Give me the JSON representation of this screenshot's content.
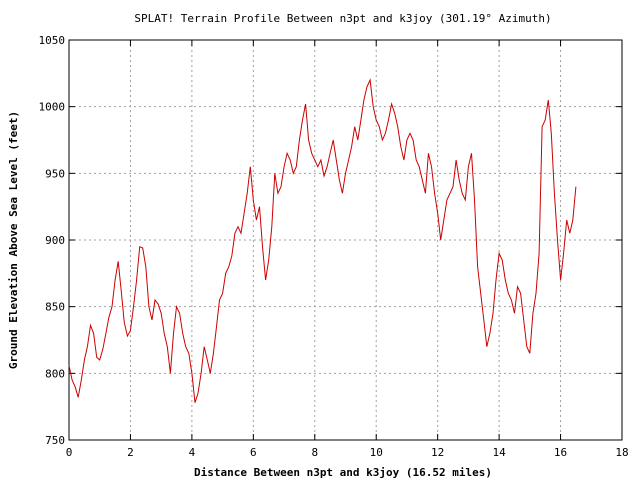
{
  "chart_data": {
    "type": "line",
    "title": "SPLAT! Terrain Profile Between n3pt and k3joy (301.19° Azimuth)",
    "xlabel": "Distance Between n3pt and k3joy (16.52 miles)",
    "ylabel": "Ground Elevation Above Sea Level (feet)",
    "xlim": [
      0,
      18
    ],
    "ylim": [
      750,
      1050
    ],
    "xticks": [
      "0",
      "2",
      "4",
      "6",
      "8",
      "10",
      "12",
      "14",
      "16",
      "18"
    ],
    "yticks": [
      "750",
      "800",
      "850",
      "900",
      "950",
      "1000",
      "1050"
    ],
    "grid": true,
    "legend": "none",
    "line_color": "#cc0000",
    "series": [
      {
        "x": [
          0.0,
          0.1,
          0.2,
          0.3,
          0.4,
          0.5,
          0.6,
          0.7,
          0.8,
          0.9,
          1.0,
          1.1,
          1.2,
          1.3,
          1.4,
          1.5,
          1.6,
          1.7,
          1.8,
          1.9,
          2.0,
          2.1,
          2.2,
          2.3,
          2.4,
          2.5,
          2.6,
          2.7,
          2.8,
          2.9,
          3.0,
          3.1,
          3.2,
          3.3,
          3.4,
          3.5,
          3.6,
          3.7,
          3.8,
          3.9,
          4.0,
          4.1,
          4.2,
          4.3,
          4.4,
          4.5,
          4.6,
          4.7,
          4.8,
          4.9,
          5.0,
          5.1,
          5.2,
          5.3,
          5.4,
          5.5,
          5.6,
          5.7,
          5.8,
          5.9,
          6.0,
          6.1,
          6.2,
          6.3,
          6.4,
          6.5,
          6.6,
          6.7,
          6.8,
          6.9,
          7.0,
          7.1,
          7.2,
          7.3,
          7.4,
          7.5,
          7.6,
          7.7,
          7.8,
          7.9,
          8.0,
          8.1,
          8.2,
          8.3,
          8.4,
          8.5,
          8.6,
          8.7,
          8.8,
          8.9,
          9.0,
          9.1,
          9.2,
          9.3,
          9.4,
          9.5,
          9.6,
          9.7,
          9.8,
          9.9,
          10.0,
          10.1,
          10.2,
          10.3,
          10.4,
          10.5,
          10.6,
          10.7,
          10.8,
          10.9,
          11.0,
          11.1,
          11.2,
          11.3,
          11.4,
          11.5,
          11.6,
          11.7,
          11.8,
          11.9,
          12.0,
          12.1,
          12.2,
          12.3,
          12.4,
          12.5,
          12.6,
          12.7,
          12.8,
          12.9,
          13.0,
          13.1,
          13.2,
          13.3,
          13.4,
          13.5,
          13.6,
          13.7,
          13.8,
          13.9,
          14.0,
          14.1,
          14.2,
          14.3,
          14.4,
          14.5,
          14.6,
          14.7,
          14.8,
          14.9,
          15.0,
          15.1,
          15.2,
          15.3,
          15.4,
          15.5,
          15.6,
          15.7,
          15.8,
          15.9,
          16.0,
          16.1,
          16.2,
          16.3,
          16.4,
          16.5
        ],
        "y": [
          806,
          795,
          790,
          782,
          795,
          810,
          820,
          836,
          830,
          812,
          810,
          818,
          830,
          842,
          850,
          870,
          884,
          862,
          838,
          828,
          832,
          850,
          870,
          895,
          894,
          880,
          850,
          840,
          855,
          852,
          845,
          830,
          820,
          800,
          830,
          850,
          845,
          830,
          820,
          815,
          800,
          778,
          785,
          800,
          820,
          810,
          800,
          815,
          835,
          855,
          860,
          875,
          880,
          888,
          905,
          910,
          905,
          920,
          935,
          955,
          930,
          915,
          925,
          895,
          870,
          885,
          910,
          950,
          935,
          940,
          955,
          965,
          960,
          950,
          955,
          975,
          990,
          1002,
          975,
          965,
          960,
          955,
          960,
          948,
          955,
          965,
          975,
          960,
          945,
          935,
          950,
          960,
          970,
          985,
          975,
          990,
          1005,
          1015,
          1020,
          1000,
          990,
          985,
          975,
          980,
          990,
          1002,
          995,
          985,
          970,
          960,
          975,
          980,
          975,
          960,
          955,
          945,
          935,
          965,
          955,
          935,
          920,
          900,
          915,
          930,
          935,
          940,
          960,
          945,
          935,
          930,
          955,
          965,
          930,
          880,
          860,
          840,
          820,
          830,
          845,
          870,
          890,
          885,
          870,
          860,
          855,
          845,
          865,
          860,
          840,
          820,
          815,
          845,
          860,
          890,
          985,
          990,
          1005,
          980,
          935,
          900,
          870,
          890,
          915,
          905,
          915,
          940
        ]
      }
    ]
  }
}
